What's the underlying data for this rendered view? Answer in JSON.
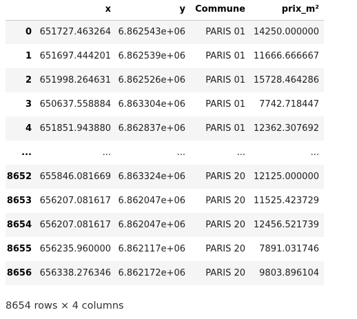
{
  "dataframe": {
    "columns": [
      "",
      "x",
      "y",
      "Commune",
      "prix_m²"
    ],
    "rows": [
      [
        "0",
        "651727.463264",
        "6.862543e+06",
        "PARIS 01",
        "14250.000000"
      ],
      [
        "1",
        "651697.444201",
        "6.862539e+06",
        "PARIS 01",
        "11666.666667"
      ],
      [
        "2",
        "651998.264631",
        "6.862526e+06",
        "PARIS 01",
        "15728.464286"
      ],
      [
        "3",
        "650637.558884",
        "6.863304e+06",
        "PARIS 01",
        "7742.718447"
      ],
      [
        "4",
        "651851.943880",
        "6.862837e+06",
        "PARIS 01",
        "12362.307692"
      ],
      [
        "...",
        "...",
        "...",
        "...",
        "..."
      ],
      [
        "8652",
        "655846.081669",
        "6.863324e+06",
        "PARIS 20",
        "12125.000000"
      ],
      [
        "8653",
        "656207.081617",
        "6.862047e+06",
        "PARIS 20",
        "11525.423729"
      ],
      [
        "8654",
        "656207.081617",
        "6.862047e+06",
        "PARIS 20",
        "12456.521739"
      ],
      [
        "8655",
        "656235.960000",
        "6.862117e+06",
        "PARIS 20",
        "7891.031746"
      ],
      [
        "8656",
        "656338.276346",
        "6.862172e+06",
        "PARIS 20",
        "9803.896104"
      ]
    ],
    "shape_text": "8654 rows × 4 columns"
  }
}
